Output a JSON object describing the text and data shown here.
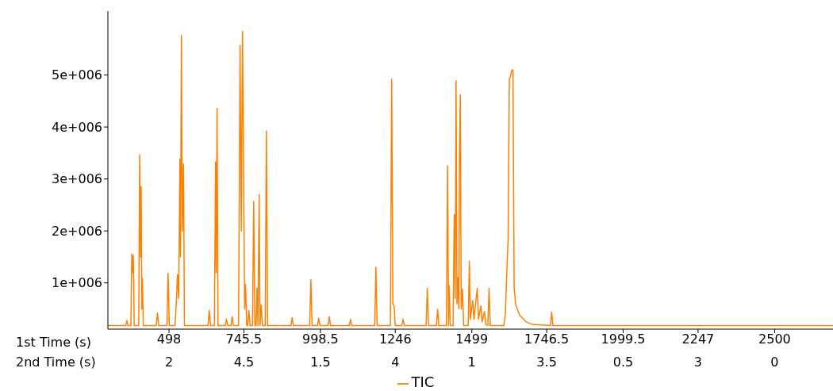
{
  "chart_data": {
    "type": "line",
    "xlabel": "1st Time (s)",
    "legend": "bottom",
    "xlim": [
      296,
      2693
    ],
    "xticks": [
      498,
      745.5,
      998.5,
      1246,
      1499,
      1746.5,
      1999.5,
      2247,
      2500
    ],
    "annotations": [
      "2nd Time (s)",
      "2",
      "4.5",
      "1.5",
      "4",
      "1",
      "3.5",
      "0.5",
      "3",
      "0"
    ],
    "ylim": [
      110000,
      6230000
    ],
    "yticks": [
      {
        "value": 1000000,
        "label": "1e+006"
      },
      {
        "value": 2000000,
        "label": "2e+006"
      },
      {
        "value": 3000000,
        "label": "3e+006"
      },
      {
        "value": 4000000,
        "label": "4e+006"
      },
      {
        "value": 5000000,
        "label": "5e+006"
      }
    ],
    "series": [
      {
        "name": "TIC",
        "color": "#ff8000",
        "x": [
          296,
          355,
          359,
          362,
          372,
          375,
          378,
          380,
          383,
          398,
          401,
          404,
          406,
          408,
          410,
          413,
          456,
          460,
          464,
          491,
          495,
          499,
          518,
          522,
          526,
          530,
          534,
          536,
          539,
          542,
          546,
          549,
          627,
          631,
          635,
          648,
          652,
          654,
          657,
          660,
          684,
          688,
          692,
          703,
          707,
          711,
          728,
          733,
          737,
          741,
          744.5,
          748,
          751,
          755,
          758,
          762,
          766,
          774,
          778,
          782,
          786,
          789,
          792,
          796,
          799,
          803,
          807,
          816,
          820,
          824,
          901,
          905,
          909,
          963,
          967,
          971,
          989,
          993,
          997,
          1024,
          1028,
          1032,
          1094,
          1098,
          1102,
          1178,
          1182,
          1186,
          1230,
          1234,
          1238,
          1242,
          1246,
          1268,
          1272,
          1276,
          1348,
          1352,
          1356,
          1382,
          1386,
          1390,
          1415,
          1419,
          1422,
          1424,
          1428,
          1437,
          1441,
          1444,
          1447,
          1450,
          1453,
          1456,
          1458,
          1461,
          1464,
          1468,
          1472,
          1487,
          1491,
          1494,
          1502,
          1506,
          1517,
          1521,
          1529,
          1533,
          1541,
          1545,
          1552,
          1556,
          1560,
          1605,
          1610,
          1614,
          1619,
          1623,
          1626,
          1631,
          1635,
          1639,
          1644,
          1657,
          1678,
          1700,
          1759,
          1763,
          1767,
          2693
        ],
        "values": [
          180000,
          180000,
          280000,
          180000,
          180000,
          1560000,
          1200000,
          1530000,
          180000,
          180000,
          3460000,
          1500000,
          2850000,
          500000,
          1100000,
          180000,
          180000,
          420000,
          180000,
          180000,
          1190000,
          180000,
          180000,
          600000,
          1160000,
          700000,
          3380000,
          1500000,
          5770000,
          2000000,
          3290000,
          180000,
          180000,
          470000,
          180000,
          180000,
          3330000,
          1200000,
          4360000,
          180000,
          180000,
          300000,
          180000,
          180000,
          350000,
          180000,
          180000,
          5570000,
          2000000,
          5840000,
          3180000,
          500000,
          970000,
          180000,
          180000,
          470000,
          180000,
          180000,
          2570000,
          180000,
          180000,
          900000,
          180000,
          2700000,
          180000,
          580000,
          180000,
          180000,
          3920000,
          180000,
          180000,
          330000,
          180000,
          180000,
          1060000,
          180000,
          180000,
          320000,
          180000,
          180000,
          350000,
          180000,
          180000,
          300000,
          180000,
          180000,
          1300000,
          180000,
          180000,
          4920000,
          600000,
          560000,
          180000,
          180000,
          300000,
          180000,
          180000,
          900000,
          180000,
          180000,
          490000,
          180000,
          180000,
          3250000,
          180000,
          950000,
          180000,
          180000,
          2320000,
          700000,
          4890000,
          600000,
          1100000,
          500000,
          3320000,
          4620000,
          500000,
          880000,
          180000,
          180000,
          1420000,
          300000,
          660000,
          300000,
          900000,
          300000,
          560000,
          250000,
          450000,
          200000,
          180000,
          900000,
          180000,
          180000,
          400000,
          1100000,
          1850000,
          4930000,
          4960000,
          5090000,
          5100000,
          900000,
          580000,
          380000,
          250000,
          200000,
          180000,
          440000,
          180000,
          180000
        ]
      }
    ]
  }
}
